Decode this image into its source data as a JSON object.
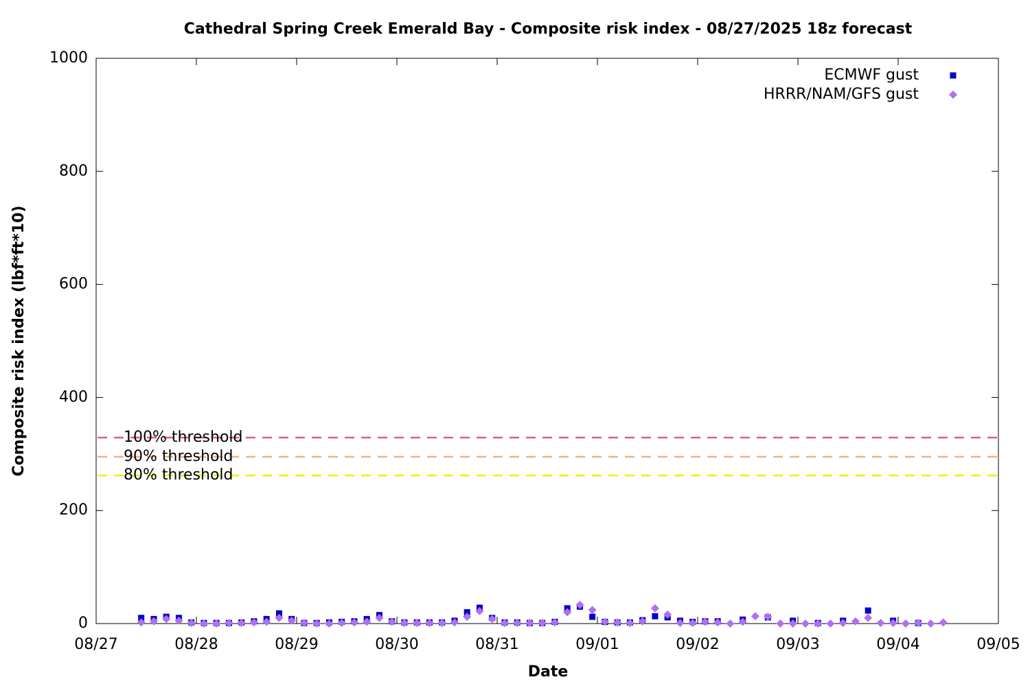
{
  "chart_data": {
    "type": "scatter",
    "title": "Cathedral Spring Creek Emerald Bay - Composite risk index - 08/27/2025 18z forecast",
    "x_label": "Date",
    "y_label": "Composite risk index (lbf*ft*10)",
    "xlim": [
      0,
      9
    ],
    "xticks": [
      {
        "value": 0,
        "label": "08/27"
      },
      {
        "value": 1,
        "label": "08/28"
      },
      {
        "value": 2,
        "label": "08/29"
      },
      {
        "value": 3,
        "label": "08/30"
      },
      {
        "value": 4,
        "label": "08/31"
      },
      {
        "value": 5,
        "label": "09/01"
      },
      {
        "value": 6,
        "label": "09/02"
      },
      {
        "value": 7,
        "label": "09/03"
      },
      {
        "value": 8,
        "label": "09/04"
      },
      {
        "value": 9,
        "label": "09/05"
      }
    ],
    "ylim": [
      0,
      1000
    ],
    "yticks": [
      0,
      200,
      400,
      600,
      800,
      1000
    ],
    "legend": "top-right",
    "thresholds": [
      {
        "label": "100% threshold",
        "value": 329,
        "color": "#d9607a"
      },
      {
        "label": "90% threshold",
        "value": 295,
        "color": "#f5b07a"
      },
      {
        "label": "80% threshold",
        "value": 262,
        "color": "#f0f000"
      }
    ],
    "series": [
      {
        "name": "ECMWF gust",
        "color": "#0000cc",
        "marker": "square",
        "x": [
          0.45,
          0.575,
          0.7,
          0.825,
          0.95,
          1.075,
          1.2,
          1.325,
          1.45,
          1.575,
          1.7,
          1.825,
          1.95,
          2.075,
          2.2,
          2.325,
          2.45,
          2.575,
          2.7,
          2.825,
          2.95,
          3.075,
          3.2,
          3.325,
          3.45,
          3.575,
          3.7,
          3.825,
          3.95,
          4.075,
          4.2,
          4.325,
          4.45,
          4.575,
          4.7,
          4.825,
          4.95,
          5.075,
          5.2,
          5.325,
          5.45,
          5.575,
          5.7,
          5.825,
          5.95,
          6.075,
          6.2,
          6.45,
          6.7,
          6.95,
          7.2,
          7.45,
          7.7,
          7.95,
          8.2
        ],
        "values": [
          10,
          8,
          12,
          10,
          2,
          1,
          1,
          1,
          2,
          4,
          8,
          18,
          8,
          1,
          1,
          2,
          3,
          4,
          8,
          15,
          4,
          2,
          2,
          2,
          2,
          5,
          20,
          28,
          10,
          2,
          2,
          1,
          1,
          3,
          27,
          30,
          12,
          3,
          2,
          2,
          6,
          13,
          11,
          5,
          3,
          4,
          4,
          7,
          11,
          5,
          1,
          5,
          23,
          5,
          1
        ]
      },
      {
        "name": "HRRR/NAM/GFS gust",
        "color": "#b26ff0",
        "marker": "diamond",
        "x": [
          0.45,
          0.575,
          0.7,
          0.825,
          0.95,
          1.075,
          1.2,
          1.325,
          1.45,
          1.575,
          1.7,
          1.825,
          1.95,
          2.075,
          2.2,
          2.325,
          2.45,
          2.575,
          2.7,
          2.825,
          2.95,
          3.075,
          3.2,
          3.325,
          3.45,
          3.575,
          3.7,
          3.825,
          3.95,
          4.075,
          4.2,
          4.325,
          4.45,
          4.575,
          4.7,
          4.825,
          4.95,
          5.075,
          5.2,
          5.325,
          5.45,
          5.575,
          5.7,
          5.825,
          5.95,
          6.075,
          6.2,
          6.325,
          6.45,
          6.575,
          6.7,
          6.825,
          6.95,
          7.075,
          7.2,
          7.325,
          7.45,
          7.575,
          7.7,
          7.825,
          7.95,
          8.075,
          8.2,
          8.325,
          8.45
        ],
        "values": [
          2,
          4,
          8,
          5,
          1,
          0,
          0,
          1,
          1,
          2,
          3,
          10,
          5,
          1,
          0,
          0,
          1,
          2,
          3,
          10,
          3,
          1,
          1,
          1,
          1,
          2,
          12,
          22,
          8,
          1,
          1,
          1,
          1,
          2,
          20,
          33,
          24,
          3,
          2,
          1,
          4,
          27,
          16,
          1,
          1,
          3,
          2,
          0,
          3,
          13,
          12,
          0,
          0,
          0,
          0,
          0,
          1,
          4,
          10,
          1,
          1,
          0,
          1,
          0,
          2
        ]
      }
    ]
  }
}
